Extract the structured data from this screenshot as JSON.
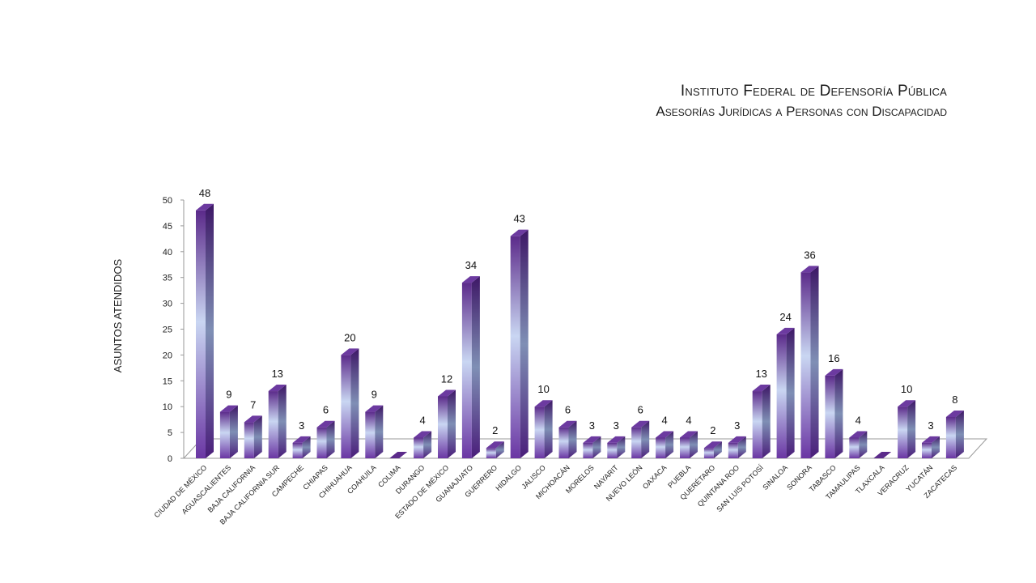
{
  "chart_data": {
    "type": "bar",
    "title": "Instituto Federal de Defensoría Pública",
    "subtitle": "Asesorías Jurídicas a Personas con Discapacidad",
    "xlabel": "",
    "ylabel": "ASUNTOS ATENDIDOS",
    "ylim": [
      0,
      50
    ],
    "yticks": [
      0,
      5,
      10,
      15,
      20,
      25,
      30,
      35,
      40,
      45,
      50
    ],
    "grid": false,
    "legend": "none",
    "bar_color_dark": "#5b2a8a",
    "bar_color_light": "#c9d6f2",
    "categories": [
      "CIUDAD DE MÉXICO",
      "AGUASCALIENTES",
      "BAJA CALIFORNIA",
      "BAJA CALIFORNIA SUR",
      "CAMPECHE",
      "CHIAPAS",
      "CHIHUAHUA",
      "COAHUILA",
      "COLIMA",
      "DURANGO",
      "ESTADO DE MÉXICO",
      "GUANAJUATO",
      "GUERRERO",
      "HIDALGO",
      "JALISCO",
      "MICHOACÁN",
      "MORELOS",
      "NAYARIT",
      "NUEVO LEÓN",
      "OAXACA",
      "PUEBLA",
      "QUERÉTARO",
      "QUINTANA ROO",
      "SAN LUIS POTOSÍ",
      "SINALOA",
      "SONORA",
      "TABASCO",
      "TAMAULIPAS",
      "TLAXCALA",
      "VERACRUZ",
      "YUCATÁN",
      "ZACATECAS"
    ],
    "values": [
      48,
      9,
      7,
      13,
      3,
      6,
      20,
      9,
      null,
      4,
      12,
      34,
      2,
      43,
      10,
      6,
      3,
      3,
      6,
      4,
      4,
      2,
      3,
      13,
      24,
      36,
      16,
      4,
      null,
      10,
      3,
      8
    ]
  }
}
